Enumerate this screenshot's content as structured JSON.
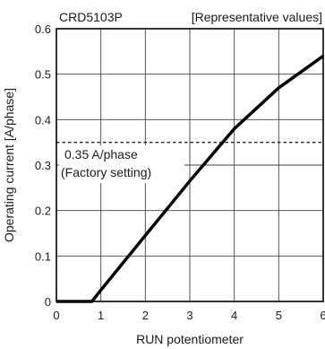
{
  "chart_data": {
    "type": "line",
    "title": "CRD5103P",
    "subtitle": "[Representative values]",
    "xlabel": "RUN potentiometer",
    "ylabel": "Operating current [A/phase]",
    "xlim": [
      0,
      6
    ],
    "ylim": [
      0,
      0.6
    ],
    "x_ticks": [
      "0",
      "1",
      "2",
      "3",
      "4",
      "5",
      "6"
    ],
    "y_ticks": [
      "0",
      "0.1",
      "0.2",
      "0.3",
      "0.4",
      "0.5",
      "0.6"
    ],
    "grid": true,
    "series": [
      {
        "x": [
          0,
          0.8,
          1.0,
          2.0,
          3.0,
          4.0,
          5.0,
          6.0
        ],
        "values": [
          0,
          0,
          0.025,
          0.145,
          0.265,
          0.38,
          0.47,
          0.54
        ]
      }
    ],
    "reference_line": {
      "value": 0.35,
      "label_line1": "0.35 A/phase",
      "label_line2": "(Factory setting)"
    }
  }
}
